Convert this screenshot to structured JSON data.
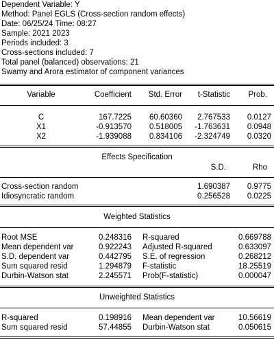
{
  "header": {
    "lines": [
      "Dependent Variable: Y",
      "Method: Panel EGLS (Cross-section random effects)",
      "Date: 06/25/24   Time: 08:27",
      "Sample: 2021 2023",
      "Periods included: 3",
      "Cross-sections included: 7",
      "Total panel (balanced) observations: 21",
      "Swamy and Arora estimator of component variances"
    ]
  },
  "coef_table": {
    "headers": [
      "Variable",
      "Coefficient",
      "Std. Error",
      "t-Statistic",
      "Prob."
    ],
    "rows": [
      [
        "C",
        "167.7225",
        "60.60360",
        "2.767533",
        "0.0127"
      ],
      [
        "X1",
        "-0.913570",
        "0.518005",
        "-1.763631",
        "0.0948"
      ],
      [
        "X2",
        "-1.939088",
        "0.834106",
        "-2.324749",
        "0.0320"
      ]
    ]
  },
  "effects": {
    "title": "Effects Specification",
    "col_sd": "S.D.",
    "col_rho": "Rho",
    "rows": [
      [
        "Cross-section random",
        "1.690387",
        "0.9775"
      ],
      [
        "Idiosyncratic random",
        "0.256528",
        "0.0225"
      ]
    ]
  },
  "weighted": {
    "title": "Weighted Statistics",
    "rows": [
      [
        "Root MSE",
        "0.248316",
        "R-squared",
        "0.669788"
      ],
      [
        "Mean dependent var",
        "0.922243",
        "Adjusted R-squared",
        "0.633097"
      ],
      [
        "S.D. dependent var",
        "0.442795",
        "S.E. of regression",
        "0.268212"
      ],
      [
        "Sum squared resid",
        "1.294879",
        "F-statistic",
        "18.25519"
      ],
      [
        "Durbin-Watson stat",
        "2.245571",
        "Prob(F-statistic)",
        "0.000047"
      ]
    ]
  },
  "unweighted": {
    "title": "Unweighted Statistics",
    "rows": [
      [
        "R-squared",
        "0.198916",
        "Mean dependent var",
        "10.56619"
      ],
      [
        "Sum squared resid",
        "57.44855",
        "Durbin-Watson stat",
        "0.050615"
      ]
    ]
  }
}
